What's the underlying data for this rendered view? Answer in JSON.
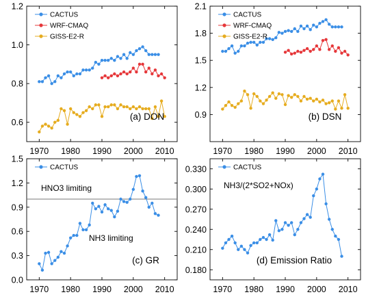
{
  "chart_data": [
    {
      "type": "line",
      "panel_label": "(a) DON",
      "xlim": [
        1966,
        2014
      ],
      "ylim": [
        0.5,
        1.2
      ],
      "xticks": [
        1970,
        1980,
        1990,
        2000,
        2010
      ],
      "yticks": [
        0.6,
        0.8,
        1.0,
        1.2
      ],
      "ytick_labels": [
        "0.6",
        "0.8",
        "1.0",
        "1.2"
      ],
      "grid": false,
      "legend_position": "top-left",
      "series": [
        {
          "name": "CACTUS",
          "color": "#3a8ee6",
          "x": [
            1970,
            1971,
            1972,
            1973,
            1974,
            1975,
            1976,
            1977,
            1978,
            1979,
            1980,
            1981,
            1982,
            1983,
            1984,
            1985,
            1986,
            1987,
            1988,
            1989,
            1990,
            1991,
            1992,
            1993,
            1994,
            1995,
            1996,
            1997,
            1998,
            1999,
            2000,
            2001,
            2002,
            2003,
            2004,
            2005,
            2006,
            2007,
            2008
          ],
          "y": [
            0.81,
            0.81,
            0.83,
            0.84,
            0.8,
            0.81,
            0.84,
            0.83,
            0.85,
            0.86,
            0.86,
            0.84,
            0.85,
            0.85,
            0.87,
            0.87,
            0.87,
            0.88,
            0.91,
            0.9,
            0.92,
            0.92,
            0.92,
            0.93,
            0.92,
            0.94,
            0.93,
            0.95,
            0.93,
            0.96,
            0.95,
            0.97,
            0.98,
            0.99,
            0.97,
            0.95,
            0.95,
            0.95,
            0.95
          ]
        },
        {
          "name": "WRF-CMAQ",
          "color": "#e6373a",
          "x": [
            1990,
            1991,
            1992,
            1993,
            1994,
            1995,
            1996,
            1997,
            1998,
            1999,
            2000,
            2001,
            2002,
            2003,
            2004,
            2005,
            2006,
            2007,
            2008,
            2009,
            2010
          ],
          "y": [
            0.83,
            0.84,
            0.83,
            0.84,
            0.85,
            0.84,
            0.85,
            0.86,
            0.85,
            0.86,
            0.88,
            0.86,
            0.9,
            0.9,
            0.86,
            0.88,
            0.85,
            0.87,
            0.84,
            0.85,
            0.83
          ]
        },
        {
          "name": "GISS-E2-R",
          "color": "#e6ac1f",
          "x": [
            1970,
            1971,
            1972,
            1973,
            1974,
            1975,
            1976,
            1977,
            1978,
            1979,
            1980,
            1981,
            1982,
            1983,
            1984,
            1985,
            1986,
            1987,
            1988,
            1989,
            1990,
            1991,
            1992,
            1993,
            1994,
            1995,
            1996,
            1997,
            1998,
            1999,
            2000,
            2001,
            2002,
            2003,
            2004,
            2005,
            2006,
            2007,
            2008,
            2009,
            2010
          ],
          "y": [
            0.55,
            0.58,
            0.59,
            0.58,
            0.57,
            0.6,
            0.61,
            0.67,
            0.66,
            0.59,
            0.67,
            0.65,
            0.64,
            0.63,
            0.65,
            0.66,
            0.68,
            0.67,
            0.69,
            0.69,
            0.63,
            0.68,
            0.68,
            0.69,
            0.69,
            0.67,
            0.69,
            0.68,
            0.68,
            0.67,
            0.68,
            0.67,
            0.68,
            0.67,
            0.67,
            0.67,
            0.62,
            0.68,
            0.63,
            0.71,
            0.63
          ]
        }
      ]
    },
    {
      "type": "line",
      "panel_label": "(b) DSN",
      "xlim": [
        1966,
        2014
      ],
      "ylim": [
        0.6,
        2.1
      ],
      "xticks": [
        1970,
        1980,
        1990,
        2000,
        2010
      ],
      "yticks": [
        0.9,
        1.2,
        1.5,
        1.8,
        2.1
      ],
      "ytick_labels": [
        "0.9",
        "1.2",
        "1.5",
        "1.8",
        "2.1"
      ],
      "grid": false,
      "legend_position": "top-left",
      "series": [
        {
          "name": "CACTUS",
          "color": "#3a8ee6",
          "x": [
            1970,
            1971,
            1972,
            1973,
            1974,
            1975,
            1976,
            1977,
            1978,
            1979,
            1980,
            1981,
            1982,
            1983,
            1984,
            1985,
            1986,
            1987,
            1988,
            1989,
            1990,
            1991,
            1992,
            1993,
            1994,
            1995,
            1996,
            1997,
            1998,
            1999,
            2000,
            2001,
            2002,
            2003,
            2004,
            2005,
            2006,
            2007,
            2008
          ],
          "y": [
            1.6,
            1.6,
            1.63,
            1.66,
            1.58,
            1.6,
            1.66,
            1.66,
            1.69,
            1.7,
            1.7,
            1.67,
            1.7,
            1.7,
            1.74,
            1.74,
            1.73,
            1.75,
            1.81,
            1.8,
            1.82,
            1.83,
            1.82,
            1.85,
            1.82,
            1.88,
            1.85,
            1.88,
            1.84,
            1.89,
            1.87,
            1.91,
            1.93,
            1.95,
            1.9,
            1.87,
            1.87,
            1.87,
            1.87
          ]
        },
        {
          "name": "WRF-CMAQ",
          "color": "#e6373a",
          "x": [
            1990,
            1991,
            1992,
            1993,
            1994,
            1995,
            1996,
            1997,
            1998,
            1999,
            2000,
            2001,
            2002,
            2003,
            2004,
            2005,
            2006,
            2007,
            2008,
            2009,
            2010
          ],
          "y": [
            1.59,
            1.61,
            1.57,
            1.58,
            1.6,
            1.59,
            1.61,
            1.63,
            1.6,
            1.62,
            1.66,
            1.62,
            1.72,
            1.73,
            1.62,
            1.66,
            1.6,
            1.64,
            1.58,
            1.6,
            1.56
          ]
        },
        {
          "name": "GISS-E2-R",
          "color": "#e6ac1f",
          "x": [
            1970,
            1971,
            1972,
            1973,
            1974,
            1975,
            1976,
            1977,
            1978,
            1979,
            1980,
            1981,
            1982,
            1983,
            1984,
            1985,
            1986,
            1987,
            1988,
            1989,
            1990,
            1991,
            1992,
            1993,
            1994,
            1995,
            1996,
            1997,
            1998,
            1999,
            2000,
            2001,
            2002,
            2003,
            2004,
            2005,
            2006,
            2007,
            2008,
            2009,
            2010
          ],
          "y": [
            0.96,
            1.0,
            1.04,
            1.0,
            0.98,
            1.02,
            1.05,
            1.16,
            1.12,
            0.97,
            1.13,
            1.1,
            1.05,
            1.02,
            1.06,
            1.1,
            1.14,
            1.08,
            1.13,
            1.12,
            1.01,
            1.11,
            1.09,
            1.12,
            1.1,
            1.05,
            1.1,
            1.07,
            1.08,
            1.05,
            1.07,
            1.04,
            1.06,
            1.02,
            1.03,
            1.05,
            0.96,
            1.05,
            0.97,
            1.12,
            0.97
          ]
        }
      ]
    },
    {
      "type": "line",
      "panel_label": "(c) GR",
      "xlim": [
        1966,
        2014
      ],
      "ylim": [
        0.0,
        1.5
      ],
      "xticks": [
        1970,
        1980,
        1990,
        2000,
        2010
      ],
      "yticks": [
        0.0,
        0.3,
        0.6,
        0.9,
        1.2,
        1.5
      ],
      "ytick_labels": [
        "0.0",
        "0.3",
        "0.6",
        "0.9",
        "1.2",
        "1.5"
      ],
      "grid": false,
      "legend_position": "top-left",
      "reference_line": 1.0,
      "annotations": [
        "HNO3 limiting",
        "NH3 limiting"
      ],
      "series": [
        {
          "name": "CACTUS",
          "color": "#3a8ee6",
          "x": [
            1970,
            1971,
            1972,
            1973,
            1974,
            1975,
            1976,
            1977,
            1978,
            1979,
            1980,
            1981,
            1982,
            1983,
            1984,
            1985,
            1986,
            1987,
            1988,
            1989,
            1990,
            1991,
            1992,
            1993,
            1994,
            1995,
            1996,
            1997,
            1998,
            1999,
            2000,
            2001,
            2002,
            2003,
            2004,
            2005,
            2006,
            2007,
            2008
          ],
          "y": [
            0.2,
            0.12,
            0.33,
            0.34,
            0.2,
            0.24,
            0.28,
            0.35,
            0.33,
            0.42,
            0.52,
            0.55,
            0.55,
            0.7,
            0.62,
            0.62,
            0.68,
            0.95,
            0.88,
            0.91,
            0.84,
            0.93,
            0.88,
            0.86,
            0.78,
            0.85,
            1.0,
            0.97,
            0.96,
            1.0,
            1.12,
            1.28,
            1.29,
            1.1,
            1.02,
            0.9,
            0.95,
            0.82,
            0.8
          ]
        }
      ]
    },
    {
      "type": "line",
      "panel_label": "(d) Emission Ratio",
      "xlim": [
        1966,
        2014
      ],
      "ylim": [
        0.165,
        0.345
      ],
      "xticks": [
        1970,
        1980,
        1990,
        2000,
        2010
      ],
      "yticks": [
        0.18,
        0.21,
        0.24,
        0.27,
        0.3,
        0.33
      ],
      "ytick_labels": [
        "0.180",
        "0.210",
        "0.240",
        "0.270",
        "0.300",
        "0.330"
      ],
      "grid": false,
      "legend_position": "top-left",
      "annotations": [
        "NH3/(2*SO2+NOx)"
      ],
      "series": [
        {
          "name": "CACTUS",
          "color": "#3a8ee6",
          "x": [
            1970,
            1971,
            1972,
            1973,
            1974,
            1975,
            1976,
            1977,
            1978,
            1979,
            1980,
            1981,
            1982,
            1983,
            1984,
            1985,
            1986,
            1987,
            1988,
            1989,
            1990,
            1991,
            1992,
            1993,
            1994,
            1995,
            1996,
            1997,
            1998,
            1999,
            2000,
            2001,
            2002,
            2003,
            2004,
            2005,
            2006,
            2007,
            2008
          ],
          "y": [
            0.212,
            0.22,
            0.225,
            0.23,
            0.22,
            0.21,
            0.215,
            0.21,
            0.205,
            0.216,
            0.22,
            0.22,
            0.225,
            0.228,
            0.225,
            0.232,
            0.224,
            0.253,
            0.238,
            0.24,
            0.25,
            0.246,
            0.25,
            0.232,
            0.24,
            0.25,
            0.256,
            0.262,
            0.258,
            0.29,
            0.3,
            0.315,
            0.322,
            0.278,
            0.255,
            0.24,
            0.23,
            0.225,
            0.2
          ]
        }
      ]
    }
  ]
}
